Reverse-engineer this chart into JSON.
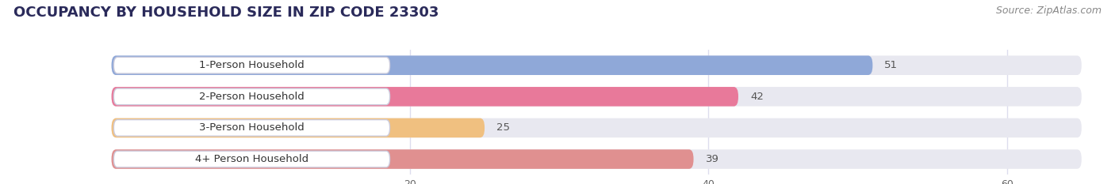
{
  "title": "OCCUPANCY BY HOUSEHOLD SIZE IN ZIP CODE 23303",
  "source": "Source: ZipAtlas.com",
  "categories": [
    "1-Person Household",
    "2-Person Household",
    "3-Person Household",
    "4+ Person Household"
  ],
  "values": [
    51,
    42,
    25,
    39
  ],
  "bar_colors": [
    "#8fa8d8",
    "#e8799a",
    "#f0c080",
    "#e09090"
  ],
  "bg_bar_color": "#e8e8f0",
  "xlim_max": 65,
  "xticks": [
    20,
    40,
    60
  ],
  "background_color": "#ffffff",
  "chart_bg_color": "#f5f5fa",
  "title_fontsize": 13,
  "source_fontsize": 9,
  "label_fontsize": 9.5,
  "value_fontsize": 9.5,
  "title_color": "#2a2a5a",
  "source_color": "#888888",
  "label_color": "#333333",
  "value_color_inside": "#ffffff",
  "value_color_outside": "#555555",
  "grid_color": "#ddddee"
}
